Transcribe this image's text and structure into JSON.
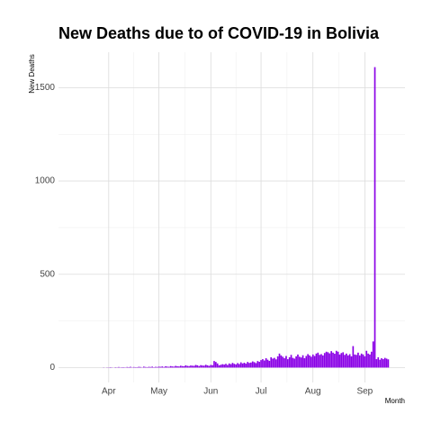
{
  "chart_data": {
    "type": "bar",
    "title": "New Deaths due to of COVID-19 in Bolivia",
    "x_label": "Month",
    "y_label": "New Deaths",
    "color": "#8a00e6",
    "grid": true,
    "x": [
      -3,
      -2,
      -1,
      0,
      1,
      2,
      3,
      4,
      5,
      6,
      7,
      8,
      9,
      10,
      11,
      12,
      13,
      14,
      15,
      16,
      17,
      18,
      19,
      20,
      21,
      22,
      23,
      24,
      25,
      26,
      27,
      28,
      29,
      30,
      31,
      32,
      33,
      34,
      35,
      36,
      37,
      38,
      39,
      40,
      41,
      42,
      43,
      44,
      45,
      46,
      47,
      48,
      49,
      50,
      51,
      52,
      53,
      54,
      55,
      56,
      57,
      58,
      59,
      60,
      61,
      62,
      63,
      64,
      65,
      66,
      67,
      68,
      69,
      70,
      71,
      72,
      73,
      74,
      75,
      76,
      77,
      78,
      79,
      80,
      81,
      82,
      83,
      84,
      85,
      86,
      87,
      88,
      89,
      90,
      91,
      92,
      93,
      94,
      95,
      96,
      97,
      98,
      99,
      100,
      101,
      102,
      103,
      104,
      105,
      106,
      107,
      108,
      109,
      110,
      111,
      112,
      113,
      114,
      115,
      116,
      117,
      118,
      119,
      120,
      121,
      122,
      123,
      124,
      125,
      126,
      127,
      128,
      129,
      130,
      131,
      132,
      133,
      134,
      135,
      136,
      137,
      138,
      139,
      140,
      141,
      142,
      143,
      144,
      145,
      146,
      147,
      148,
      149,
      150,
      151,
      152,
      153,
      154,
      155,
      156,
      157,
      158,
      159,
      160,
      161,
      162,
      163,
      164,
      165,
      166,
      167
    ],
    "values": [
      1,
      0,
      1,
      1,
      2,
      1,
      0,
      2,
      1,
      3,
      1,
      2,
      2,
      1,
      3,
      2,
      4,
      1,
      3,
      2,
      2,
      4,
      3,
      1,
      5,
      3,
      2,
      4,
      3,
      5,
      2,
      4,
      3,
      5,
      4,
      6,
      3,
      7,
      5,
      4,
      8,
      6,
      5,
      9,
      7,
      6,
      10,
      8,
      7,
      12,
      9,
      8,
      11,
      10,
      9,
      14,
      12,
      8,
      13,
      11,
      10,
      15,
      12,
      9,
      14,
      13,
      35,
      30,
      22,
      12,
      15,
      18,
      16,
      20,
      14,
      22,
      18,
      25,
      20,
      17,
      24,
      19,
      28,
      22,
      26,
      21,
      30,
      25,
      27,
      33,
      29,
      24,
      35,
      31,
      40,
      45,
      38,
      50,
      42,
      36,
      55,
      48,
      52,
      44,
      60,
      75,
      65,
      58,
      50,
      62,
      45,
      55,
      68,
      52,
      48,
      60,
      70,
      58,
      54,
      66,
      50,
      62,
      72,
      65,
      58,
      70,
      62,
      75,
      80,
      68,
      72,
      65,
      78,
      85,
      82,
      76,
      88,
      80,
      74,
      90,
      85,
      70,
      78,
      82,
      68,
      75,
      65,
      72,
      60,
      115,
      70,
      68,
      80,
      65,
      75,
      70,
      60,
      90,
      75,
      70,
      85,
      140,
      1610,
      45,
      55,
      42,
      50,
      45,
      52,
      48,
      44
    ],
    "xlim": [
      -30,
      177
    ],
    "xticks": [
      {
        "value": 0,
        "label": "Apr"
      },
      {
        "value": 30,
        "label": "May"
      },
      {
        "value": 61,
        "label": "Jun"
      },
      {
        "value": 91,
        "label": "Jul"
      },
      {
        "value": 122,
        "label": "Aug"
      },
      {
        "value": 153,
        "label": "Sep"
      }
    ],
    "ylim": [
      -80,
      1690
    ],
    "yticks": [
      0,
      500,
      1000,
      1500
    ]
  }
}
